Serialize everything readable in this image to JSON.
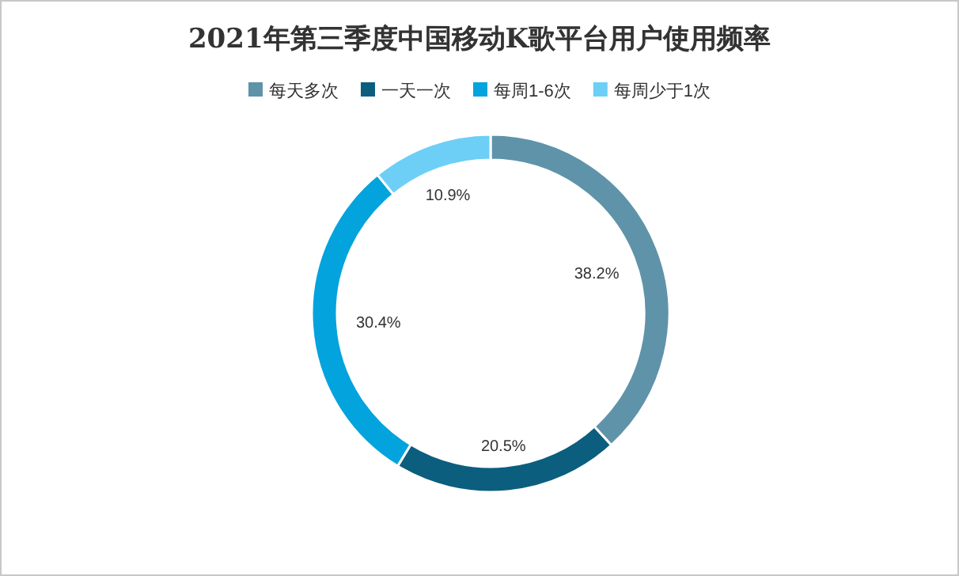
{
  "chart_data": {
    "type": "donut",
    "title": "2021年第三季度中国移动K歌平台用户使用频率",
    "categories": [
      "每天多次",
      "一天一次",
      "每周1-6次",
      "每周少于1次"
    ],
    "values": [
      38.2,
      20.5,
      30.4,
      10.9
    ],
    "value_labels": [
      "38.2%",
      "20.5%",
      "30.4%",
      "10.9%"
    ],
    "colors": [
      "#5f93a9",
      "#0b5e7e",
      "#03a3dd",
      "#6ecff6"
    ],
    "legend": "top"
  }
}
